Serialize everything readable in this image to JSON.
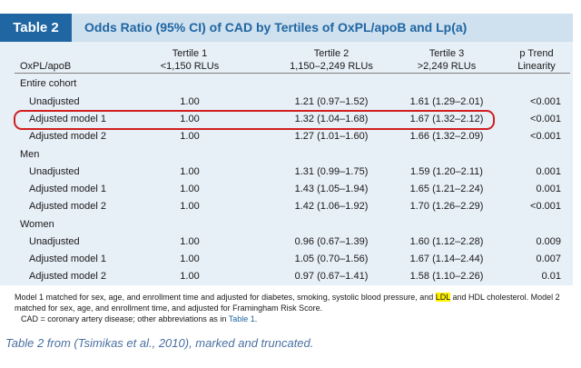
{
  "table": {
    "number": "Table 2",
    "title": "Odds Ratio (95% CI) of CAD by Tertiles of OxPL/apoB and Lp(a)",
    "headers": {
      "col0": "OxPL/apoB",
      "t1_line1": "Tertile 1",
      "t1_line2": "<1,150 RLUs",
      "t2_line1": "Tertile 2",
      "t2_line2": "1,150–2,249 RLUs",
      "t3_line1": "Tertile 3",
      "t3_line2": ">2,249 RLUs",
      "p_line1": "p Trend",
      "p_line2": "Linearity"
    },
    "rows": [
      {
        "label": "Entire cohort",
        "t1": "",
        "t2": "",
        "t3": "",
        "p": ""
      },
      {
        "label": "Unadjusted",
        "t1": "1.00",
        "t2": "1.21 (0.97–1.52)",
        "t3": "1.61 (1.29–2.01)",
        "p": "<0.001"
      },
      {
        "label": "Adjusted model 1",
        "t1": "1.00",
        "t2": "1.32 (1.04–1.68)",
        "t3": "1.67 (1.32–2.12)",
        "p": "<0.001"
      },
      {
        "label": "Adjusted model 2",
        "t1": "1.00",
        "t2": "1.27 (1.01–1.60)",
        "t3": "1.66 (1.32–2.09)",
        "p": "<0.001"
      },
      {
        "label": "Men",
        "t1": "",
        "t2": "",
        "t3": "",
        "p": ""
      },
      {
        "label": "Unadjusted",
        "t1": "1.00",
        "t2": "1.31 (0.99–1.75)",
        "t3": "1.59 (1.20–2.11)",
        "p": "0.001"
      },
      {
        "label": "Adjusted model 1",
        "t1": "1.00",
        "t2": "1.43 (1.05–1.94)",
        "t3": "1.65 (1.21–2.24)",
        "p": "0.001"
      },
      {
        "label": "Adjusted model 2",
        "t1": "1.00",
        "t2": "1.42 (1.06–1.92)",
        "t3": "1.70 (1.26–2.29)",
        "p": "<0.001"
      },
      {
        "label": "Women",
        "t1": "",
        "t2": "",
        "t3": "",
        "p": ""
      },
      {
        "label": "Unadjusted",
        "t1": "1.00",
        "t2": "0.96 (0.67–1.39)",
        "t3": "1.60 (1.12–2.28)",
        "p": "0.009"
      },
      {
        "label": "Adjusted model 1",
        "t1": "1.00",
        "t2": "1.05 (0.70–1.56)",
        "t3": "1.67 (1.14–2.44)",
        "p": "0.007"
      },
      {
        "label": "Adjusted model 2",
        "t1": "1.00",
        "t2": "0.97 (0.67–1.41)",
        "t3": "1.58 (1.10–2.26)",
        "p": "0.01"
      }
    ],
    "footnote": {
      "line1_pre": "Model 1 matched for sex, age, and enrollment time and adjusted for diabetes, smoking, systolic blood pressure, and ",
      "ldl": "LDL",
      "line1_post": " and HDL cholesterol. Model 2",
      "line2": "matched for sex, age, and enrollment time, and adjusted for Framingham Risk Score.",
      "line3_pre": "CAD = coronary artery disease; other abbreviations as in ",
      "table_ref": "Table 1",
      "line3_post": "."
    }
  },
  "caption": "Table 2 from (Tsimikas et al., 2010), marked and truncated.",
  "colors": {
    "accent": "#1f66a2",
    "title_band": "#cfe0ee",
    "table_bg": "#e7eff7",
    "highlight": "#d02020",
    "ldl_highlight": "#fff200"
  }
}
